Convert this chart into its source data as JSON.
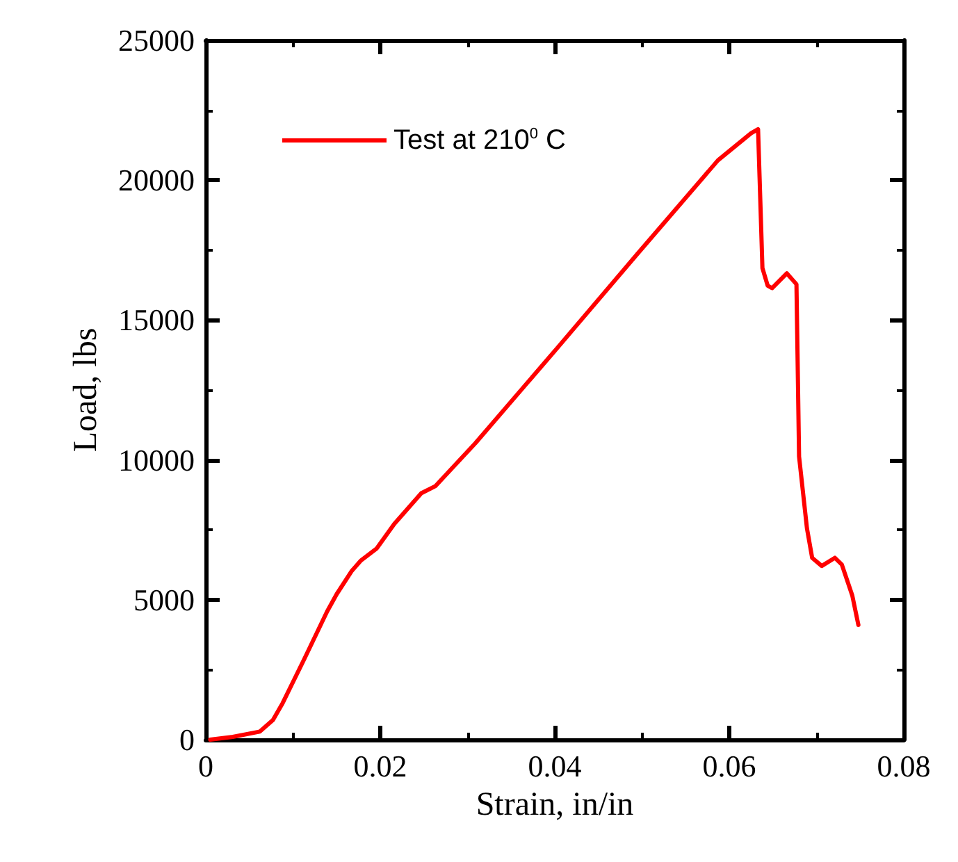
{
  "chart_data": {
    "type": "line",
    "xlabel": "Strain, in/in",
    "ylabel": "Load, lbs",
    "xlim": [
      0,
      0.08
    ],
    "xticks": [
      0,
      0.02,
      0.04,
      0.06,
      0.08
    ],
    "ylim": [
      0,
      25000
    ],
    "yticks": [
      0,
      5000,
      10000,
      15000,
      20000,
      25000
    ],
    "grid": false,
    "legend": "top left",
    "marker": "none",
    "line_style": "solid",
    "series": [
      {
        "name": "Test at 210$^{0}$ C",
        "color": "#ff0000",
        "x": [
          0.0005,
          0.0031,
          0.0062,
          0.0077,
          0.0088,
          0.0113,
          0.0139,
          0.015,
          0.0167,
          0.0178,
          0.0196,
          0.0216,
          0.0247,
          0.0263,
          0.0309,
          0.0402,
          0.0494,
          0.0587,
          0.0625,
          0.0633,
          0.0638,
          0.0644,
          0.0649,
          0.0666,
          0.0677,
          0.068,
          0.0689,
          0.0695,
          0.0706,
          0.0721,
          0.0729,
          0.0741,
          0.0748
        ],
        "values": [
          0,
          100,
          290,
          700,
          1300,
          2890,
          4580,
          5200,
          6020,
          6410,
          6840,
          7710,
          8810,
          9060,
          10600,
          13970,
          17340,
          20710,
          21680,
          21820,
          16860,
          16230,
          16140,
          16670,
          16280,
          10120,
          7560,
          6500,
          6210,
          6500,
          6260,
          5150,
          4100
        ]
      }
    ]
  }
}
